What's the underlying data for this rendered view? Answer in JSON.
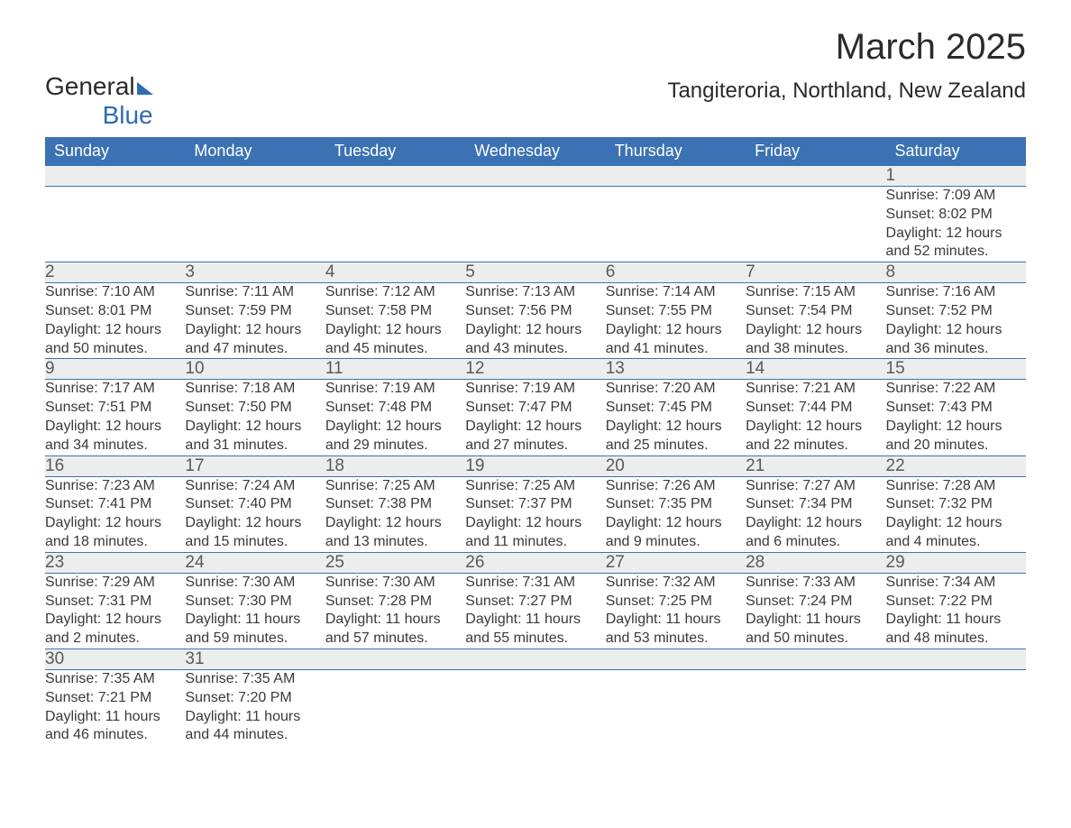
{
  "logo": {
    "line1": "General",
    "line2": "Blue"
  },
  "title": "March 2025",
  "location": "Tangiteroria, Northland, New Zealand",
  "colors": {
    "header_bg": "#3b72b3",
    "header_text": "#ffffff",
    "daynum_bg": "#eceded",
    "text": "#3a3a3a",
    "rule": "#3b72b3",
    "logo_blue": "#2d6db0"
  },
  "typography": {
    "title_fontsize": 40,
    "location_fontsize": 24,
    "header_fontsize": 18,
    "daynum_fontsize": 19,
    "cell_fontsize": 16
  },
  "layout": {
    "columns": 7,
    "weeks": 6
  },
  "daynames": [
    "Sunday",
    "Monday",
    "Tuesday",
    "Wednesday",
    "Thursday",
    "Friday",
    "Saturday"
  ],
  "weeks": [
    [
      null,
      null,
      null,
      null,
      null,
      null,
      {
        "d": "1",
        "sr": "Sunrise: 7:09 AM",
        "ss": "Sunset: 8:02 PM",
        "dl1": "Daylight: 12 hours",
        "dl2": "and 52 minutes."
      }
    ],
    [
      {
        "d": "2",
        "sr": "Sunrise: 7:10 AM",
        "ss": "Sunset: 8:01 PM",
        "dl1": "Daylight: 12 hours",
        "dl2": "and 50 minutes."
      },
      {
        "d": "3",
        "sr": "Sunrise: 7:11 AM",
        "ss": "Sunset: 7:59 PM",
        "dl1": "Daylight: 12 hours",
        "dl2": "and 47 minutes."
      },
      {
        "d": "4",
        "sr": "Sunrise: 7:12 AM",
        "ss": "Sunset: 7:58 PM",
        "dl1": "Daylight: 12 hours",
        "dl2": "and 45 minutes."
      },
      {
        "d": "5",
        "sr": "Sunrise: 7:13 AM",
        "ss": "Sunset: 7:56 PM",
        "dl1": "Daylight: 12 hours",
        "dl2": "and 43 minutes."
      },
      {
        "d": "6",
        "sr": "Sunrise: 7:14 AM",
        "ss": "Sunset: 7:55 PM",
        "dl1": "Daylight: 12 hours",
        "dl2": "and 41 minutes."
      },
      {
        "d": "7",
        "sr": "Sunrise: 7:15 AM",
        "ss": "Sunset: 7:54 PM",
        "dl1": "Daylight: 12 hours",
        "dl2": "and 38 minutes."
      },
      {
        "d": "8",
        "sr": "Sunrise: 7:16 AM",
        "ss": "Sunset: 7:52 PM",
        "dl1": "Daylight: 12 hours",
        "dl2": "and 36 minutes."
      }
    ],
    [
      {
        "d": "9",
        "sr": "Sunrise: 7:17 AM",
        "ss": "Sunset: 7:51 PM",
        "dl1": "Daylight: 12 hours",
        "dl2": "and 34 minutes."
      },
      {
        "d": "10",
        "sr": "Sunrise: 7:18 AM",
        "ss": "Sunset: 7:50 PM",
        "dl1": "Daylight: 12 hours",
        "dl2": "and 31 minutes."
      },
      {
        "d": "11",
        "sr": "Sunrise: 7:19 AM",
        "ss": "Sunset: 7:48 PM",
        "dl1": "Daylight: 12 hours",
        "dl2": "and 29 minutes."
      },
      {
        "d": "12",
        "sr": "Sunrise: 7:19 AM",
        "ss": "Sunset: 7:47 PM",
        "dl1": "Daylight: 12 hours",
        "dl2": "and 27 minutes."
      },
      {
        "d": "13",
        "sr": "Sunrise: 7:20 AM",
        "ss": "Sunset: 7:45 PM",
        "dl1": "Daylight: 12 hours",
        "dl2": "and 25 minutes."
      },
      {
        "d": "14",
        "sr": "Sunrise: 7:21 AM",
        "ss": "Sunset: 7:44 PM",
        "dl1": "Daylight: 12 hours",
        "dl2": "and 22 minutes."
      },
      {
        "d": "15",
        "sr": "Sunrise: 7:22 AM",
        "ss": "Sunset: 7:43 PM",
        "dl1": "Daylight: 12 hours",
        "dl2": "and 20 minutes."
      }
    ],
    [
      {
        "d": "16",
        "sr": "Sunrise: 7:23 AM",
        "ss": "Sunset: 7:41 PM",
        "dl1": "Daylight: 12 hours",
        "dl2": "and 18 minutes."
      },
      {
        "d": "17",
        "sr": "Sunrise: 7:24 AM",
        "ss": "Sunset: 7:40 PM",
        "dl1": "Daylight: 12 hours",
        "dl2": "and 15 minutes."
      },
      {
        "d": "18",
        "sr": "Sunrise: 7:25 AM",
        "ss": "Sunset: 7:38 PM",
        "dl1": "Daylight: 12 hours",
        "dl2": "and 13 minutes."
      },
      {
        "d": "19",
        "sr": "Sunrise: 7:25 AM",
        "ss": "Sunset: 7:37 PM",
        "dl1": "Daylight: 12 hours",
        "dl2": "and 11 minutes."
      },
      {
        "d": "20",
        "sr": "Sunrise: 7:26 AM",
        "ss": "Sunset: 7:35 PM",
        "dl1": "Daylight: 12 hours",
        "dl2": "and 9 minutes."
      },
      {
        "d": "21",
        "sr": "Sunrise: 7:27 AM",
        "ss": "Sunset: 7:34 PM",
        "dl1": "Daylight: 12 hours",
        "dl2": "and 6 minutes."
      },
      {
        "d": "22",
        "sr": "Sunrise: 7:28 AM",
        "ss": "Sunset: 7:32 PM",
        "dl1": "Daylight: 12 hours",
        "dl2": "and 4 minutes."
      }
    ],
    [
      {
        "d": "23",
        "sr": "Sunrise: 7:29 AM",
        "ss": "Sunset: 7:31 PM",
        "dl1": "Daylight: 12 hours",
        "dl2": "and 2 minutes."
      },
      {
        "d": "24",
        "sr": "Sunrise: 7:30 AM",
        "ss": "Sunset: 7:30 PM",
        "dl1": "Daylight: 11 hours",
        "dl2": "and 59 minutes."
      },
      {
        "d": "25",
        "sr": "Sunrise: 7:30 AM",
        "ss": "Sunset: 7:28 PM",
        "dl1": "Daylight: 11 hours",
        "dl2": "and 57 minutes."
      },
      {
        "d": "26",
        "sr": "Sunrise: 7:31 AM",
        "ss": "Sunset: 7:27 PM",
        "dl1": "Daylight: 11 hours",
        "dl2": "and 55 minutes."
      },
      {
        "d": "27",
        "sr": "Sunrise: 7:32 AM",
        "ss": "Sunset: 7:25 PM",
        "dl1": "Daylight: 11 hours",
        "dl2": "and 53 minutes."
      },
      {
        "d": "28",
        "sr": "Sunrise: 7:33 AM",
        "ss": "Sunset: 7:24 PM",
        "dl1": "Daylight: 11 hours",
        "dl2": "and 50 minutes."
      },
      {
        "d": "29",
        "sr": "Sunrise: 7:34 AM",
        "ss": "Sunset: 7:22 PM",
        "dl1": "Daylight: 11 hours",
        "dl2": "and 48 minutes."
      }
    ],
    [
      {
        "d": "30",
        "sr": "Sunrise: 7:35 AM",
        "ss": "Sunset: 7:21 PM",
        "dl1": "Daylight: 11 hours",
        "dl2": "and 46 minutes."
      },
      {
        "d": "31",
        "sr": "Sunrise: 7:35 AM",
        "ss": "Sunset: 7:20 PM",
        "dl1": "Daylight: 11 hours",
        "dl2": "and 44 minutes."
      },
      null,
      null,
      null,
      null,
      null
    ]
  ]
}
